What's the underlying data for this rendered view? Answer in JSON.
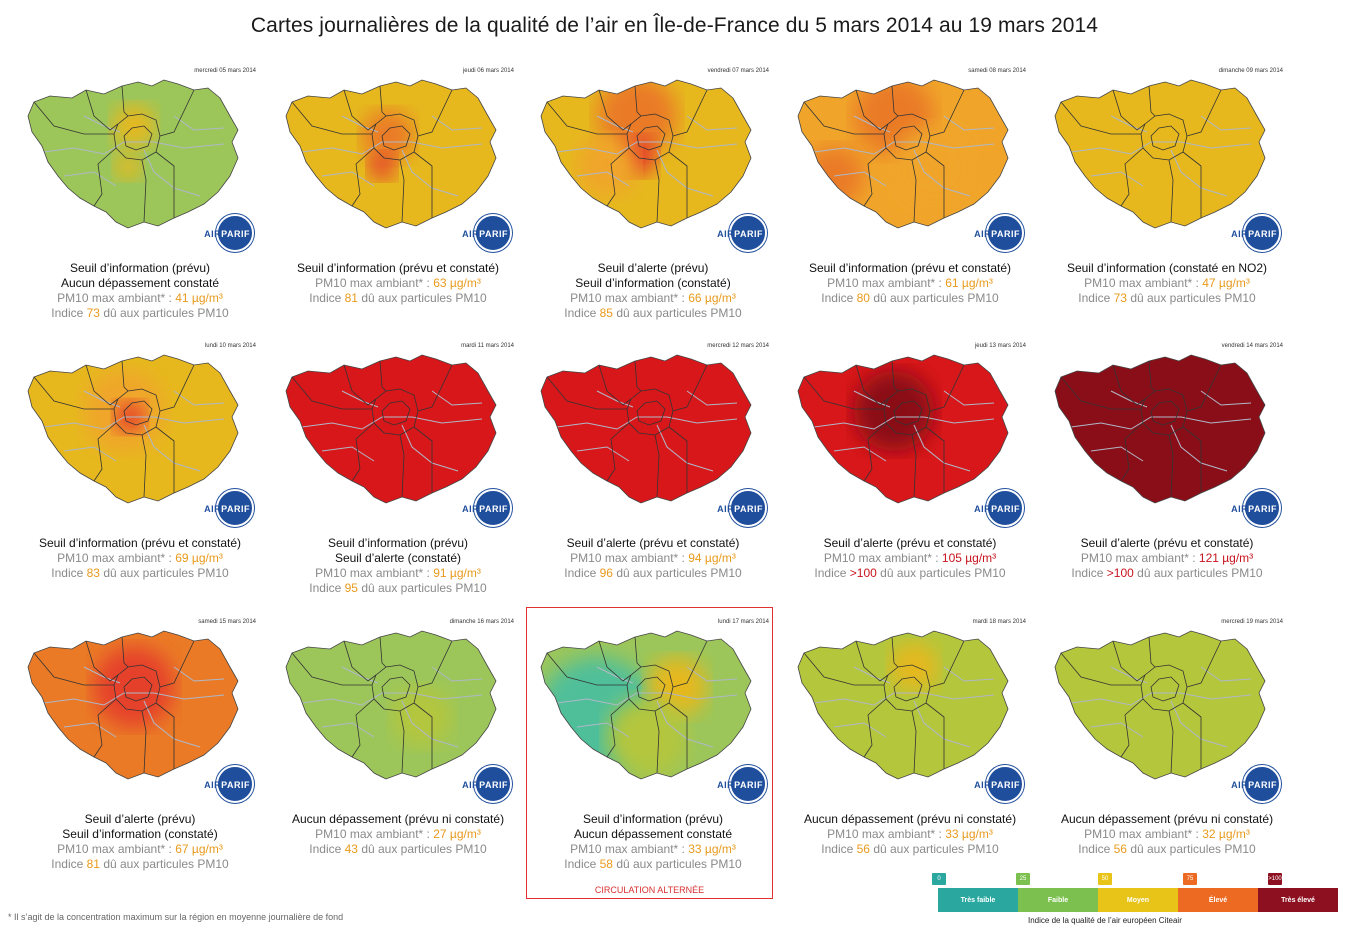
{
  "title": "Cartes journalières de la qualité de l’air en Île-de-France du 5 mars 2014 au 19 mars 2014",
  "logo_text": "AIRPARIF",
  "panels": [
    {
      "date": "mercredi 05 mars 2014",
      "level": 1,
      "line1": "Seuil d’information (prévu)",
      "line2": "Aucun dépassement constaté",
      "pm_label": "PM10 max ambiant* : ",
      "pm_value": "41 µg/m³",
      "ind_pre": "Indice ",
      "ind_value": "73",
      "ind_post": " dû aux particules PM10",
      "val_color": "o"
    },
    {
      "date": "jeudi 06 mars 2014",
      "level": 2,
      "line1": "Seuil d’information (prévu et constaté)",
      "line2": "",
      "pm_label": "PM10 max ambiant* : ",
      "pm_value": "63 µg/m³",
      "ind_pre": "Indice ",
      "ind_value": "81",
      "ind_post": " dû aux particules PM10",
      "val_color": "o"
    },
    {
      "date": "vendredi 07 mars 2014",
      "level": 3,
      "line1": "Seuil d’alerte (prévu)",
      "line2": "Seuil d’information (constaté)",
      "pm_label": "PM10 max ambiant* : ",
      "pm_value": "66 µg/m³",
      "ind_pre": "Indice ",
      "ind_value": "85",
      "ind_post": " dû aux particules PM10",
      "val_color": "o"
    },
    {
      "date": "samedi 08 mars 2014",
      "level": 4,
      "line1": "Seuil d’information (prévu et constaté)",
      "line2": "",
      "pm_label": "PM10 max ambiant* : ",
      "pm_value": "61 µg/m³",
      "ind_pre": "Indice ",
      "ind_value": "80",
      "ind_post": " dû aux particules PM10",
      "val_color": "o"
    },
    {
      "date": "dimanche 09 mars 2014",
      "level": 2,
      "line1": "Seuil d’information (constaté en NO2)",
      "line2": "",
      "pm_label": "PM10 max ambiant* : ",
      "pm_value": "47 µg/m³",
      "ind_pre": "Indice ",
      "ind_value": "73",
      "ind_post": " dû aux particules PM10",
      "val_color": "o"
    },
    {
      "date": "lundi 10 mars 2014",
      "level": 3,
      "line1": "Seuil d’information (prévu et constaté)",
      "line2": "",
      "pm_label": "PM10 max ambiant* : ",
      "pm_value": "69 µg/m³",
      "ind_pre": "Indice ",
      "ind_value": "83",
      "ind_post": " dû aux particules PM10",
      "val_color": "o"
    },
    {
      "date": "mardi 11 mars 2014",
      "level": 6,
      "line1": "Seuil d’information (prévu)",
      "line2": "Seuil d’alerte (constaté)",
      "pm_label": "PM10 max ambiant* : ",
      "pm_value": "91 µg/m³",
      "ind_pre": "Indice ",
      "ind_value": "95",
      "ind_post": " dû aux particules PM10",
      "val_color": "o"
    },
    {
      "date": "mercredi 12 mars 2014",
      "level": 6,
      "line1": "Seuil d’alerte (prévu et constaté)",
      "line2": "",
      "pm_label": "PM10 max ambiant* : ",
      "pm_value": "94 µg/m³",
      "ind_pre": "Indice ",
      "ind_value": "96",
      "ind_post": " dû aux particules PM10",
      "val_color": "o"
    },
    {
      "date": "jeudi 13 mars 2014",
      "level": 6,
      "line1": "Seuil d’alerte (prévu et constaté)",
      "line2": "",
      "pm_label": "PM10 max ambiant* : ",
      "pm_value": "105 µg/m³",
      "ind_pre": "Indice ",
      "ind_value": ">100",
      "ind_post": " dû aux particules PM10",
      "val_color": "r"
    },
    {
      "date": "vendredi 14 mars 2014",
      "level": 7,
      "line1": "Seuil d’alerte (prévu et constaté)",
      "line2": "",
      "pm_label": "PM10 max ambiant* : ",
      "pm_value": "121 µg/m³",
      "ind_pre": "Indice ",
      "ind_value": ">100",
      "ind_post": " dû aux particules PM10",
      "val_color": "r"
    },
    {
      "date": "samedi 15 mars 2014",
      "level": 5,
      "line1": "Seuil d’alerte (prévu)",
      "line2": "Seuil d’information (constaté)",
      "pm_label": "PM10 max ambiant* : ",
      "pm_value": "67 µg/m³",
      "ind_pre": "Indice ",
      "ind_value": "81",
      "ind_post": " dû aux particules PM10",
      "val_color": "o"
    },
    {
      "date": "dimanche 16 mars 2014",
      "level": 0,
      "line1": "Aucun dépassement (prévu ni constaté)",
      "line2": "",
      "pm_label": "PM10 max ambiant* : ",
      "pm_value": "27 µg/m³",
      "ind_pre": "Indice ",
      "ind_value": "43",
      "ind_post": " dû aux particules PM10",
      "val_color": "o"
    },
    {
      "date": "lundi 17 mars 2014",
      "level": -1,
      "line1": "Seuil d’information (prévu)",
      "line2": "Aucun dépassement constaté",
      "pm_label": "PM10 max ambiant* : ",
      "pm_value": "33 µg/m³",
      "ind_pre": "Indice ",
      "ind_value": "58",
      "ind_post": " dû aux particules PM10",
      "val_color": "o"
    },
    {
      "date": "mardi 18 mars 2014",
      "level": 1,
      "line1": "Aucun dépassement (prévu ni constaté)",
      "line2": "",
      "pm_label": "PM10 max ambiant* : ",
      "pm_value": "33 µg/m³",
      "ind_pre": "Indice ",
      "ind_value": "56",
      "ind_post": " dû aux particules PM10",
      "val_color": "o"
    },
    {
      "date": "mercredi 19 mars 2014",
      "level": 1,
      "line1": "Aucun dépassement (prévu ni constaté)",
      "line2": "",
      "pm_label": "PM10 max ambiant* : ",
      "pm_value": "32 µg/m³",
      "ind_pre": "Indice ",
      "ind_value": "56",
      "ind_post": " dû aux particules PM10",
      "val_color": "o"
    }
  ],
  "map_palette": [
    "#4fbf9a",
    "#9cc65a",
    "#b4c63c",
    "#e6b81e",
    "#f0a52a",
    "#ea7a26",
    "#e5402a",
    "#d8171a",
    "#8a0e18"
  ],
  "circulation_note": "CIRCULATION ALTERNÉE",
  "footnote": "* Il s’agit de la concentration maximum sur la région en moyenne journalière de fond",
  "legend": {
    "ticks": [
      "0",
      "25",
      "50",
      "75",
      ">100"
    ],
    "labels": [
      "Très faible",
      "Faible",
      "Moyen",
      "Élevé",
      "Très élevé"
    ],
    "colors": [
      "#2aa8a0",
      "#7cc050",
      "#e8c418",
      "#ec6a22",
      "#8c1020"
    ],
    "caption": "Indice de la qualité de l’air européen Citeair"
  }
}
